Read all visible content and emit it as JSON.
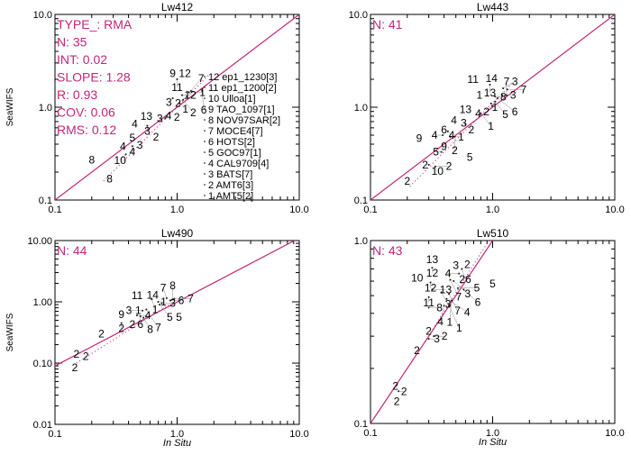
{
  "colors": {
    "line": "#c0267a",
    "stats": "#c0267a",
    "points": "#000000",
    "axes": "#000000"
  },
  "chart_data": [
    {
      "type": "scatter",
      "title": "Lw412",
      "xlabel": "",
      "ylabel": "SeaWIFS",
      "xscale": "log",
      "yscale": "log",
      "xlim": [
        0.1,
        10.0
      ],
      "ylim": [
        0.1,
        10.0
      ],
      "xticks": [
        "0.1",
        "1.0",
        "10.0"
      ],
      "yticks": [
        "0.1",
        "1.0",
        "10.0"
      ],
      "stats": [
        "TYPE_: RMA",
        "N: 35",
        "INT: 0.02",
        "SLOPE: 1.28",
        "R: 0.93",
        "COV: 0.06",
        "RMS: 0.12"
      ],
      "one_to_one": [
        [
          0.1,
          0.1
        ],
        [
          10.0,
          10.0
        ]
      ],
      "fit_line": [
        [
          0.25,
          0.16
        ],
        [
          1.8,
          2.2
        ]
      ],
      "legend": [
        "12 ep1_1230[3]",
        "11 ep1_1200[2]",
        "10 Ulloa[1]",
        "9 TAO_1097[1]",
        "8 NOV97SAR[2]",
        "7 MOCE4[7]",
        "6 HOTS[2]",
        "5 GOC97[1]",
        "4 CAL9709[4]",
        "3 BATS[7]",
        "2 AMT6[3]",
        "1 AMT5[2]"
      ],
      "points": [
        {
          "label": "9",
          "x": 0.92,
          "y": 2.3
        },
        {
          "label": "12",
          "x": 1.1,
          "y": 2.3
        },
        {
          "label": "11",
          "x": 1.0,
          "y": 2.0
        },
        {
          "label": "12",
          "x": 1.1,
          "y": 1.35
        },
        {
          "label": "1",
          "x": 1.25,
          "y": 1.45
        },
        {
          "label": "7",
          "x": 1.3,
          "y": 1.5
        },
        {
          "label": "2",
          "x": 1.2,
          "y": 1.3
        },
        {
          "label": "6",
          "x": 1.6,
          "y": 1.5
        },
        {
          "label": "3",
          "x": 0.92,
          "y": 1.25
        },
        {
          "label": "1",
          "x": 1.05,
          "y": 1.1
        },
        {
          "label": "2",
          "x": 1.12,
          "y": 1.2
        },
        {
          "label": "4",
          "x": 0.85,
          "y": 0.86
        },
        {
          "label": "2",
          "x": 0.96,
          "y": 0.82
        },
        {
          "label": "3",
          "x": 0.8,
          "y": 0.76
        },
        {
          "label": "13",
          "x": 0.56,
          "y": 0.8
        },
        {
          "label": "4",
          "x": 0.45,
          "y": 0.66
        },
        {
          "label": "3",
          "x": 0.57,
          "y": 0.63
        },
        {
          "label": "2",
          "x": 0.67,
          "y": 0.48
        },
        {
          "label": "5",
          "x": 0.43,
          "y": 0.47
        },
        {
          "label": "4",
          "x": 0.36,
          "y": 0.38
        },
        {
          "label": "4",
          "x": 0.43,
          "y": 0.38
        },
        {
          "label": "3",
          "x": 0.47,
          "y": 0.39
        },
        {
          "label": "10",
          "x": 0.38,
          "y": 0.31
        },
        {
          "label": "8",
          "x": 0.2,
          "y": 0.27
        },
        {
          "label": "8",
          "x": 0.28,
          "y": 0.17
        }
      ]
    },
    {
      "type": "scatter",
      "title": "Lw443",
      "xlabel": "",
      "ylabel": "",
      "xscale": "log",
      "yscale": "log",
      "xlim": [
        0.1,
        10.0
      ],
      "ylim": [
        0.1,
        10.0
      ],
      "xticks": [
        "0.1",
        "1.0",
        "10.0"
      ],
      "yticks": [
        "0.1",
        "1.0",
        "10.0"
      ],
      "stats": [
        "N: 41"
      ],
      "one_to_one": [
        [
          0.1,
          0.1
        ],
        [
          10.0,
          10.0
        ]
      ],
      "fit_line": [
        [
          0.21,
          0.14
        ],
        [
          1.5,
          1.9
        ]
      ],
      "points": [
        {
          "label": "11",
          "x": 0.69,
          "y": 2.0
        },
        {
          "label": "14",
          "x": 0.98,
          "y": 2.05
        },
        {
          "label": "13",
          "x": 0.95,
          "y": 1.75
        },
        {
          "label": "1",
          "x": 0.82,
          "y": 1.35
        },
        {
          "label": "1",
          "x": 0.97,
          "y": 1.1
        },
        {
          "label": "2",
          "x": 0.99,
          "y": 1.03
        },
        {
          "label": "8",
          "x": 1.05,
          "y": 1.3
        },
        {
          "label": "3",
          "x": 1.2,
          "y": 1.35
        },
        {
          "label": "7",
          "x": 1.3,
          "y": 1.35
        },
        {
          "label": "5",
          "x": 1.05,
          "y": 1.15
        },
        {
          "label": "6",
          "x": 1.1,
          "y": 1.25
        },
        {
          "label": "3",
          "x": 1.22,
          "y": 1.6
        },
        {
          "label": "7",
          "x": 1.32,
          "y": 1.55
        },
        {
          "label": "13",
          "x": 0.6,
          "y": 0.95
        },
        {
          "label": "4",
          "x": 0.79,
          "y": 0.9
        },
        {
          "label": "1",
          "x": 0.8,
          "y": 0.86
        },
        {
          "label": "4",
          "x": 0.5,
          "y": 0.76
        },
        {
          "label": "3",
          "x": 0.58,
          "y": 0.72
        },
        {
          "label": "2",
          "x": 0.6,
          "y": 0.66
        },
        {
          "label": "6",
          "x": 0.4,
          "y": 0.57
        },
        {
          "label": "4",
          "x": 0.43,
          "y": 0.55
        },
        {
          "label": "4",
          "x": 0.39,
          "y": 0.5
        },
        {
          "label": "1",
          "x": 0.45,
          "y": 0.48
        },
        {
          "label": "2",
          "x": 0.49,
          "y": 0.48
        },
        {
          "label": "9",
          "x": 0.25,
          "y": 0.46
        },
        {
          "label": "9",
          "x": 0.38,
          "y": 0.38
        },
        {
          "label": "5",
          "x": 0.38,
          "y": 0.33
        },
        {
          "label": "5",
          "x": 0.65,
          "y": 0.29
        },
        {
          "label": "2",
          "x": 0.28,
          "y": 0.24
        },
        {
          "label": "10",
          "x": 0.3,
          "y": 0.24
        },
        {
          "label": "2",
          "x": 0.34,
          "y": 0.23
        },
        {
          "label": "2",
          "x": 0.2,
          "y": 0.16
        }
      ]
    },
    {
      "type": "scatter",
      "title": "Lw490",
      "xlabel": "In Situ",
      "ylabel": "SeaWIFS",
      "xscale": "log",
      "yscale": "log",
      "xlim": [
        0.1,
        10.0
      ],
      "ylim": [
        0.01,
        10.0
      ],
      "xticks": [
        "0.1",
        "1.0",
        "10.0"
      ],
      "yticks": [
        "0.01",
        "0.10",
        "1.00",
        "10.00"
      ],
      "stats": [
        "N: 44"
      ],
      "one_to_one": [
        [
          0.1,
          0.09
        ],
        [
          10.0,
          11.0
        ]
      ],
      "fit_line": [
        [
          0.15,
          0.1
        ],
        [
          0.9,
          0.95
        ]
      ],
      "points": [
        {
          "label": "11",
          "x": 0.47,
          "y": 1.26
        },
        {
          "label": "14",
          "x": 0.63,
          "y": 1.3
        },
        {
          "label": "1",
          "x": 0.62,
          "y": 1.1
        },
        {
          "label": "1",
          "x": 0.7,
          "y": 1.0
        },
        {
          "label": "3",
          "x": 0.75,
          "y": 0.95
        },
        {
          "label": "7",
          "x": 0.82,
          "y": 1.15
        },
        {
          "label": "5",
          "x": 0.72,
          "y": 0.9
        },
        {
          "label": "6",
          "x": 0.88,
          "y": 1.05
        },
        {
          "label": "8",
          "x": 0.92,
          "y": 1.1
        },
        {
          "label": "7",
          "x": 0.95,
          "y": 1.12
        },
        {
          "label": "9",
          "x": 0.35,
          "y": 0.62
        },
        {
          "label": "2",
          "x": 0.35,
          "y": 0.45
        },
        {
          "label": "2",
          "x": 0.43,
          "y": 0.43
        },
        {
          "label": "1",
          "x": 0.48,
          "y": 0.72
        },
        {
          "label": "4",
          "x": 0.47,
          "y": 0.6
        },
        {
          "label": "3",
          "x": 0.52,
          "y": 0.72
        },
        {
          "label": "6",
          "x": 0.5,
          "y": 0.58
        },
        {
          "label": "7",
          "x": 0.56,
          "y": 0.75
        },
        {
          "label": "8",
          "x": 0.53,
          "y": 0.55
        },
        {
          "label": "5",
          "x": 1.0,
          "y": 0.6
        },
        {
          "label": "2",
          "x": 0.24,
          "y": 0.3
        },
        {
          "label": "2",
          "x": 0.15,
          "y": 0.14
        },
        {
          "label": "2",
          "x": 0.17,
          "y": 0.13
        },
        {
          "label": "2",
          "x": 0.14,
          "y": 0.09
        }
      ]
    },
    {
      "type": "scatter",
      "title": "Lw510",
      "xlabel": "In Situ",
      "ylabel": "",
      "xscale": "log",
      "yscale": "log",
      "xlim": [
        0.1,
        10.0
      ],
      "ylim": [
        0.1,
        1.0
      ],
      "xticks": [
        "0.1",
        "1.0",
        "10.0"
      ],
      "yticks": [
        "0.1",
        "1.0"
      ],
      "stats": [
        "N: 43"
      ],
      "one_to_one": [
        [
          0.1,
          0.1
        ],
        [
          1.0,
          1.0
        ]
      ],
      "fit_line": [
        [
          0.28,
          0.28
        ],
        [
          0.93,
          1.0
        ]
      ],
      "points": [
        {
          "label": "13",
          "x": 0.32,
          "y": 0.79
        },
        {
          "label": "12",
          "x": 0.32,
          "y": 0.71
        },
        {
          "label": "10",
          "x": 0.25,
          "y": 0.64
        },
        {
          "label": "12",
          "x": 0.31,
          "y": 0.59
        },
        {
          "label": "13",
          "x": 0.32,
          "y": 0.54
        },
        {
          "label": "11",
          "x": 0.3,
          "y": 0.49
        },
        {
          "label": "8",
          "x": 0.3,
          "y": 0.43
        },
        {
          "label": "3",
          "x": 0.5,
          "y": 0.73
        },
        {
          "label": "2",
          "x": 0.62,
          "y": 0.74
        },
        {
          "label": "26",
          "x": 0.56,
          "y": 0.7
        },
        {
          "label": "4",
          "x": 0.53,
          "y": 0.66
        },
        {
          "label": "7",
          "x": 0.45,
          "y": 0.61
        },
        {
          "label": "3",
          "x": 0.48,
          "y": 0.6
        },
        {
          "label": "5",
          "x": 0.52,
          "y": 0.55
        },
        {
          "label": "6",
          "x": 0.58,
          "y": 0.54
        },
        {
          "label": "3",
          "x": 0.38,
          "y": 0.52
        },
        {
          "label": "7",
          "x": 0.44,
          "y": 0.51
        },
        {
          "label": "4",
          "x": 0.42,
          "y": 0.48
        },
        {
          "label": "1",
          "x": 0.46,
          "y": 0.47
        },
        {
          "label": "4",
          "x": 0.4,
          "y": 0.44
        },
        {
          "label": "1",
          "x": 0.44,
          "y": 0.44
        },
        {
          "label": "5",
          "x": 1.0,
          "y": 0.58
        },
        {
          "label": "2",
          "x": 0.3,
          "y": 0.32
        },
        {
          "label": "3",
          "x": 0.3,
          "y": 0.29
        },
        {
          "label": "2",
          "x": 0.33,
          "y": 0.3
        },
        {
          "label": "2",
          "x": 0.24,
          "y": 0.25
        },
        {
          "label": "2",
          "x": 0.16,
          "y": 0.16
        },
        {
          "label": "2",
          "x": 0.17,
          "y": 0.15
        },
        {
          "label": "2",
          "x": 0.17,
          "y": 0.135
        }
      ]
    }
  ]
}
